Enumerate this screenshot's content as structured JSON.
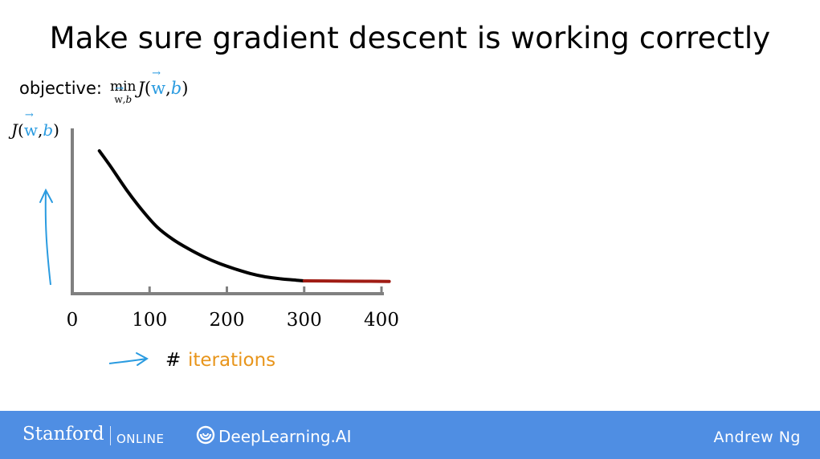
{
  "slide": {
    "title": "Make sure gradient descent is working correctly",
    "objective_label": "objective:",
    "objective_min": "min",
    "objective_min_sub_w": "w",
    "objective_min_sub_b": ",b",
    "objective_J": "J",
    "objective_open": "(",
    "objective_w": "w",
    "objective_comma": ",",
    "objective_b": "b",
    "objective_close": ")"
  },
  "chart_data": {
    "type": "line",
    "ylabel_J": "J",
    "ylabel_open": "(",
    "ylabel_w": "w",
    "ylabel_comma": ",",
    "ylabel_b": "b",
    "ylabel_close": ")",
    "xlabel_hash": "#",
    "xlabel_word": "iterations",
    "xlim": [
      0,
      400
    ],
    "xticks": [
      0,
      100,
      200,
      300,
      400
    ],
    "xticklabels": [
      "0",
      "100",
      "200",
      "300",
      "400"
    ],
    "ylim": [
      0,
      1
    ],
    "grid": false,
    "series": [
      {
        "color": "#000000",
        "x": [
          35,
          50,
          70,
          90,
          110,
          130,
          150,
          170,
          190,
          210,
          230,
          250,
          270,
          290,
          300
        ],
        "y": [
          1.0,
          0.88,
          0.71,
          0.56,
          0.43,
          0.34,
          0.27,
          0.21,
          0.16,
          0.12,
          0.085,
          0.06,
          0.045,
          0.035,
          0.03
        ]
      },
      {
        "color": "#a01c14",
        "x": [
          300,
          340,
          380,
          410
        ],
        "y": [
          0.03,
          0.028,
          0.027,
          0.026
        ]
      }
    ]
  },
  "colors": {
    "accent_blue": "#2a9be0",
    "accent_orange": "#e8951b",
    "converged_red": "#a01c14",
    "footer_blue": "#4f8ee3"
  },
  "footer": {
    "stanford": "Stanford",
    "online": "ONLINE",
    "deeplearning": "DeepLearning.AI",
    "author": "Andrew Ng"
  }
}
